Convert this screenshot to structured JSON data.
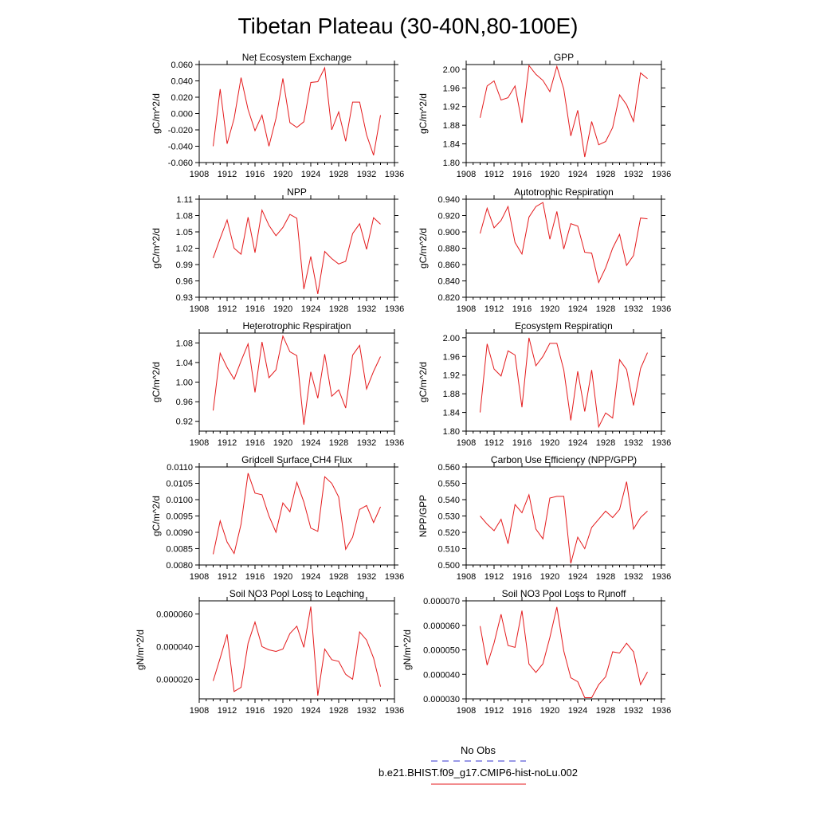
{
  "figure": {
    "title": "Tibetan Plateau (30-40N,80-100E)",
    "line_color": "#e41a1c",
    "obs_color": "#3333cc"
  },
  "legend": {
    "position": "bottom-center",
    "entries": [
      {
        "label": "No Obs",
        "style": "dashed",
        "color": "#3333cc"
      },
      {
        "label": "b.e21.BHIST.f09_g17.CMIP6-hist-noLu.002",
        "style": "solid",
        "color": "#e41a1c"
      }
    ]
  },
  "chart_data": [
    {
      "type": "line",
      "title": "Net Ecosystem Exchange",
      "ylabel": "gC/m^2/d",
      "xlim": [
        1908,
        1936
      ],
      "xticks": [
        "1908",
        "1912",
        "1916",
        "1920",
        "1924",
        "1928",
        "1932",
        "1936"
      ],
      "ylim": [
        -0.06,
        0.06
      ],
      "yticks": [
        "-0.060",
        "-0.040",
        "-0.020",
        "0.000",
        "0.020",
        "0.040",
        "0.060"
      ],
      "series": [
        {
          "x": [
            1910,
            1911,
            1912,
            1913,
            1914,
            1915,
            1916,
            1917,
            1918,
            1919,
            1920,
            1921,
            1922,
            1923,
            1924,
            1925,
            1926,
            1927,
            1928,
            1929,
            1930,
            1931,
            1932,
            1933,
            1934
          ],
          "values": [
            -0.04,
            0.03,
            -0.037,
            -0.006,
            0.044,
            0.005,
            -0.021,
            -0.002,
            -0.04,
            -0.006,
            0.043,
            -0.011,
            -0.017,
            -0.01,
            0.038,
            0.039,
            0.056,
            -0.02,
            0.002,
            -0.034,
            0.014,
            0.014,
            -0.026,
            -0.051,
            -0.002
          ]
        }
      ]
    },
    {
      "type": "line",
      "title": "GPP",
      "ylabel": "gC/m^2/d",
      "xlim": [
        1908,
        1936
      ],
      "xticks": [
        "1908",
        "1912",
        "1916",
        "1920",
        "1924",
        "1928",
        "1932",
        "1936"
      ],
      "ylim": [
        1.8,
        2.01
      ],
      "yticks": [
        "1.80",
        "1.84",
        "1.88",
        "1.92",
        "1.96",
        "2.00"
      ],
      "series": [
        {
          "x": [
            1910,
            1911,
            1912,
            1913,
            1914,
            1915,
            1916,
            1917,
            1918,
            1919,
            1920,
            1921,
            1922,
            1923,
            1924,
            1925,
            1926,
            1927,
            1928,
            1929,
            1930,
            1931,
            1932,
            1933,
            1934
          ],
          "values": [
            1.896,
            1.964,
            1.975,
            1.934,
            1.939,
            1.964,
            1.885,
            2.008,
            1.989,
            1.976,
            1.952,
            2.006,
            1.957,
            1.857,
            1.912,
            1.812,
            1.888,
            1.838,
            1.845,
            1.875,
            1.945,
            1.924,
            1.888,
            1.992,
            1.98
          ]
        }
      ]
    },
    {
      "type": "line",
      "title": "NPP",
      "ylabel": "gC/m^2/d",
      "xlim": [
        1908,
        1936
      ],
      "xticks": [
        "1908",
        "1912",
        "1916",
        "1920",
        "1924",
        "1928",
        "1932",
        "1936"
      ],
      "ylim": [
        0.93,
        1.11
      ],
      "yticks": [
        "0.93",
        "0.96",
        "0.99",
        "1.02",
        "1.05",
        "1.08",
        "1.11"
      ],
      "series": [
        {
          "x": [
            1910,
            1911,
            1912,
            1913,
            1914,
            1915,
            1916,
            1917,
            1918,
            1919,
            1920,
            1921,
            1922,
            1923,
            1924,
            1925,
            1926,
            1927,
            1928,
            1929,
            1930,
            1931,
            1932,
            1933,
            1934
          ],
          "values": [
            1.002,
            1.038,
            1.072,
            1.02,
            1.009,
            1.077,
            1.012,
            1.09,
            1.062,
            1.043,
            1.058,
            1.082,
            1.075,
            0.945,
            1.005,
            0.936,
            1.014,
            1.001,
            0.991,
            0.996,
            1.047,
            1.065,
            1.018,
            1.076,
            1.064
          ]
        }
      ]
    },
    {
      "type": "line",
      "title": "Autotrophic Respiration",
      "ylabel": "gC/m^2/d",
      "xlim": [
        1908,
        1936
      ],
      "xticks": [
        "1908",
        "1912",
        "1916",
        "1920",
        "1924",
        "1928",
        "1932",
        "1936"
      ],
      "ylim": [
        0.82,
        0.94
      ],
      "yticks": [
        "0.820",
        "0.840",
        "0.860",
        "0.880",
        "0.900",
        "0.920",
        "0.940"
      ],
      "series": [
        {
          "x": [
            1910,
            1911,
            1912,
            1913,
            1914,
            1915,
            1916,
            1917,
            1918,
            1919,
            1920,
            1921,
            1922,
            1923,
            1924,
            1925,
            1926,
            1927,
            1928,
            1929,
            1930,
            1931,
            1932,
            1933,
            1934
          ],
          "values": [
            0.898,
            0.929,
            0.905,
            0.914,
            0.931,
            0.887,
            0.873,
            0.918,
            0.931,
            0.936,
            0.891,
            0.925,
            0.879,
            0.91,
            0.907,
            0.875,
            0.874,
            0.838,
            0.856,
            0.88,
            0.897,
            0.859,
            0.871,
            0.917,
            0.916
          ]
        }
      ]
    },
    {
      "type": "line",
      "title": "Heterotrophic Respiration",
      "ylabel": "gC/m^2/d",
      "xlim": [
        1908,
        1936
      ],
      "xticks": [
        "1908",
        "1912",
        "1916",
        "1920",
        "1924",
        "1928",
        "1932",
        "1936"
      ],
      "ylim": [
        0.9,
        1.1
      ],
      "yticks": [
        "0.92",
        "0.96",
        "1.00",
        "1.04",
        "1.08"
      ],
      "series": [
        {
          "x": [
            1910,
            1911,
            1912,
            1913,
            1914,
            1915,
            1916,
            1917,
            1918,
            1919,
            1920,
            1921,
            1922,
            1923,
            1924,
            1925,
            1926,
            1927,
            1928,
            1929,
            1930,
            1931,
            1932,
            1933,
            1934
          ],
          "values": [
            0.942,
            1.059,
            1.03,
            1.006,
            1.043,
            1.078,
            0.979,
            1.082,
            1.009,
            1.025,
            1.094,
            1.062,
            1.054,
            0.913,
            1.021,
            0.967,
            1.057,
            0.971,
            0.984,
            0.947,
            1.055,
            1.075,
            0.986,
            1.022,
            1.052
          ]
        }
      ]
    },
    {
      "type": "line",
      "title": "Ecosystem Respiration",
      "ylabel": "gC/m^2/d",
      "xlim": [
        1908,
        1936
      ],
      "xticks": [
        "1908",
        "1912",
        "1916",
        "1920",
        "1924",
        "1928",
        "1932",
        "1936"
      ],
      "ylim": [
        1.8,
        2.01
      ],
      "yticks": [
        "1.80",
        "1.84",
        "1.88",
        "1.92",
        "1.96",
        "2.00"
      ],
      "series": [
        {
          "x": [
            1910,
            1911,
            1912,
            1913,
            1914,
            1915,
            1916,
            1917,
            1918,
            1919,
            1920,
            1921,
            1922,
            1923,
            1924,
            1925,
            1926,
            1927,
            1928,
            1929,
            1930,
            1931,
            1932,
            1933,
            1934
          ],
          "values": [
            1.84,
            1.987,
            1.933,
            1.918,
            1.972,
            1.963,
            1.851,
            2.0,
            1.94,
            1.96,
            1.988,
            1.988,
            1.931,
            1.823,
            1.928,
            1.842,
            1.931,
            1.809,
            1.839,
            1.828,
            1.953,
            1.932,
            1.855,
            1.934,
            1.968
          ]
        }
      ]
    },
    {
      "type": "line",
      "title": "Gridcell Surface CH4 Flux",
      "ylabel": "gC/m^2/d",
      "xlim": [
        1908,
        1936
      ],
      "xticks": [
        "1908",
        "1912",
        "1916",
        "1920",
        "1924",
        "1928",
        "1932",
        "1936"
      ],
      "ylim": [
        0.008,
        0.011
      ],
      "yticks": [
        "0.0080",
        "0.0085",
        "0.0090",
        "0.0095",
        "0.0100",
        "0.0105",
        "0.0110"
      ],
      "series": [
        {
          "x": [
            1910,
            1911,
            1912,
            1913,
            1914,
            1915,
            1916,
            1917,
            1918,
            1919,
            1920,
            1921,
            1922,
            1923,
            1924,
            1925,
            1926,
            1927,
            1928,
            1929,
            1930,
            1931,
            1932,
            1933,
            1934
          ],
          "values": [
            0.00833,
            0.00935,
            0.0087,
            0.00835,
            0.00925,
            0.01081,
            0.0102,
            0.01015,
            0.0095,
            0.009,
            0.0099,
            0.00963,
            0.01053,
            0.00993,
            0.00913,
            0.00903,
            0.0107,
            0.0105,
            0.01008,
            0.00848,
            0.00885,
            0.0097,
            0.00982,
            0.0093,
            0.00978
          ]
        }
      ]
    },
    {
      "type": "line",
      "title": "Carbon Use Efficiency (NPP/GPP)",
      "ylabel": "NPP/GPP",
      "xlim": [
        1908,
        1936
      ],
      "xticks": [
        "1908",
        "1912",
        "1916",
        "1920",
        "1924",
        "1928",
        "1932",
        "1936"
      ],
      "ylim": [
        0.5,
        0.56
      ],
      "yticks": [
        "0.500",
        "0.510",
        "0.520",
        "0.530",
        "0.540",
        "0.550",
        "0.560"
      ],
      "series": [
        {
          "x": [
            1910,
            1911,
            1912,
            1913,
            1914,
            1915,
            1916,
            1917,
            1918,
            1919,
            1920,
            1921,
            1922,
            1923,
            1924,
            1925,
            1926,
            1927,
            1928,
            1929,
            1930,
            1931,
            1932,
            1933,
            1934
          ],
          "values": [
            0.53,
            0.525,
            0.521,
            0.528,
            0.513,
            0.537,
            0.532,
            0.543,
            0.522,
            0.516,
            0.541,
            0.542,
            0.542,
            0.501,
            0.517,
            0.51,
            0.523,
            0.528,
            0.533,
            0.529,
            0.534,
            0.551,
            0.522,
            0.529,
            0.533
          ]
        }
      ]
    },
    {
      "type": "line",
      "title": "Soil NO3 Pool Loss to Leaching",
      "ylabel": "gN/m^2/d",
      "xlim": [
        1908,
        1936
      ],
      "xticks": [
        "1908",
        "1912",
        "1916",
        "1920",
        "1924",
        "1928",
        "1932",
        "1936"
      ],
      "ylim": [
        8e-06,
        6.8e-05
      ],
      "yticks": [
        "0.000020",
        "0.000040",
        "0.000060"
      ],
      "series": [
        {
          "x": [
            1910,
            1911,
            1912,
            1913,
            1914,
            1915,
            1916,
            1917,
            1918,
            1919,
            1920,
            1921,
            1922,
            1923,
            1924,
            1925,
            1926,
            1927,
            1928,
            1929,
            1930,
            1931,
            1932,
            1933,
            1934
          ],
          "values": [
            1.9e-05,
            3.3e-05,
            4.75e-05,
            1.25e-05,
            1.5e-05,
            4.2e-05,
            5.5e-05,
            4e-05,
            3.8e-05,
            3.7e-05,
            3.85e-05,
            4.8e-05,
            5.25e-05,
            3.95e-05,
            6.45e-05,
            1e-05,
            3.85e-05,
            3.2e-05,
            3.1e-05,
            2.3e-05,
            2e-05,
            4.9e-05,
            4.4e-05,
            3.3e-05,
            1.55e-05
          ]
        }
      ]
    },
    {
      "type": "line",
      "title": "Soil NO3 Pool Loss to Runoff",
      "ylabel": "gN/m^2/d",
      "xlim": [
        1908,
        1936
      ],
      "xticks": [
        "1908",
        "1912",
        "1916",
        "1920",
        "1924",
        "1928",
        "1932",
        "1936"
      ],
      "ylim": [
        3e-05,
        7e-05
      ],
      "yticks": [
        "0.000030",
        "0.000040",
        "0.000050",
        "0.000060",
        "0.000070"
      ],
      "series": [
        {
          "x": [
            1910,
            1911,
            1912,
            1913,
            1914,
            1915,
            1916,
            1917,
            1918,
            1919,
            1920,
            1921,
            1922,
            1923,
            1924,
            1925,
            1926,
            1927,
            1928,
            1929,
            1930,
            1931,
            1932,
            1933,
            1934
          ],
          "values": [
            5.97e-05,
            4.38e-05,
            5.28e-05,
            6.45e-05,
            5.18e-05,
            5.1e-05,
            6.6e-05,
            4.42e-05,
            4.08e-05,
            4.43e-05,
            5.5e-05,
            6.75e-05,
            4.95e-05,
            3.86e-05,
            3.7e-05,
            3.05e-05,
            3.05e-05,
            3.58e-05,
            3.9e-05,
            4.92e-05,
            4.87e-05,
            5.27e-05,
            4.92e-05,
            3.58e-05,
            4.1e-05
          ]
        }
      ]
    }
  ]
}
